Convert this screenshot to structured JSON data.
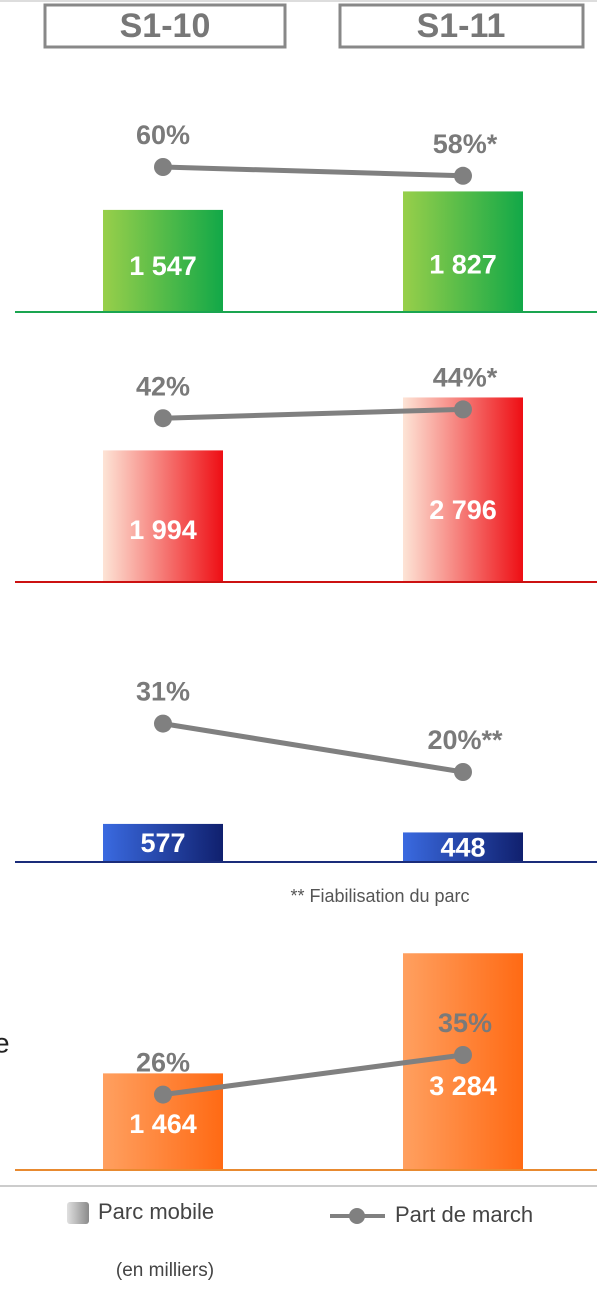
{
  "categories": [
    "S1-10",
    "S1-11"
  ],
  "chart_data": [
    {
      "type": "bar_line",
      "bar_values": [
        1547,
        1827
      ],
      "bar_value_labels": [
        "1 547",
        "1 827"
      ],
      "line_values": [
        60,
        58
      ],
      "line_value_labels": [
        "60%",
        "58%*"
      ],
      "colors": [
        "#98cf4a",
        "#12a848"
      ],
      "baseline_color": "#1aa550"
    },
    {
      "type": "bar_line",
      "bar_values": [
        1994,
        2796
      ],
      "bar_value_labels": [
        "1 994",
        "2 796"
      ],
      "line_values": [
        42,
        44
      ],
      "line_value_labels": [
        "42%",
        "44%*"
      ],
      "colors": [
        "#fde4d6",
        "#ee0e14"
      ],
      "baseline_color": "#cc1111"
    },
    {
      "type": "bar_line",
      "bar_values": [
        577,
        448
      ],
      "bar_value_labels": [
        "577",
        "448"
      ],
      "line_values": [
        31,
        20
      ],
      "line_value_labels": [
        "31%",
        "20%**"
      ],
      "colors": [
        "#3a6ae0",
        "#10206e"
      ],
      "baseline_color": "#1a2c7a",
      "note": "** Fiabilisation du parc"
    },
    {
      "type": "bar_line",
      "bar_values": [
        1464,
        3284
      ],
      "bar_value_labels": [
        "1 464",
        "3 284"
      ],
      "line_values": [
        26,
        35
      ],
      "line_value_labels": [
        "26%",
        "35%"
      ],
      "colors": [
        "#ffa060",
        "#ff6a14"
      ],
      "baseline_color": "#e88a30",
      "side_label": "e"
    }
  ],
  "legend": {
    "bar": "Parc mobile",
    "bar_unit": "(en milliers)",
    "line": "Part de march"
  }
}
